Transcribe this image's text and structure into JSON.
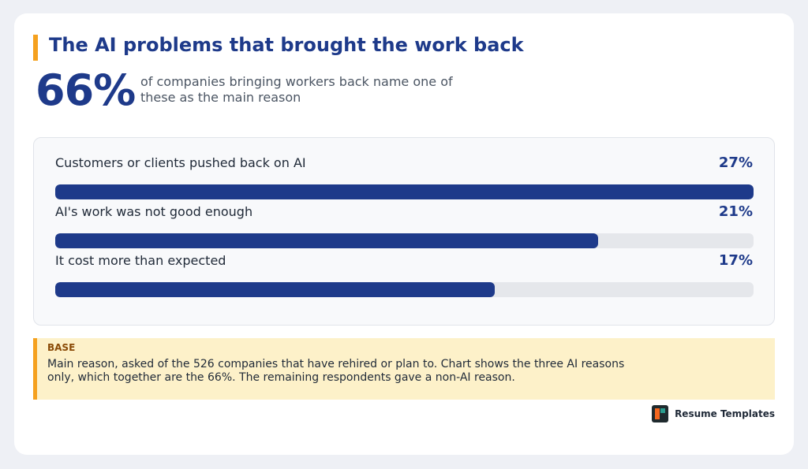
{
  "header": {
    "title": "The AI problems that brought the work back",
    "big_number": "66%",
    "subtitle": "of companies bringing workers back name one of these as the main reason"
  },
  "chart_data": {
    "type": "bar",
    "orientation": "horizontal",
    "categories": [
      "Customers or clients pushed back on AI",
      "AI's work was not good enough",
      "It cost more than expected"
    ],
    "values": [
      27,
      21,
      17
    ],
    "value_labels": [
      "27%",
      "21%",
      "17%"
    ],
    "xlim": [
      0,
      27
    ],
    "grid": false
  },
  "note": {
    "heading": "BASE",
    "text": "Main reason, asked of the 526 companies that have rehired or plan to. Chart shows the three AI reasons only, which together are the 66%. The remaining respondents gave a non-AI reason."
  },
  "brand": {
    "name": "Resume Templates",
    "logo_icon": "resume-templates-logo-icon"
  },
  "colors": {
    "primary": "#1e3a8a",
    "accent": "#f5a11f",
    "track": "#e5e7eb",
    "note_bg": "#fdf1c9"
  }
}
